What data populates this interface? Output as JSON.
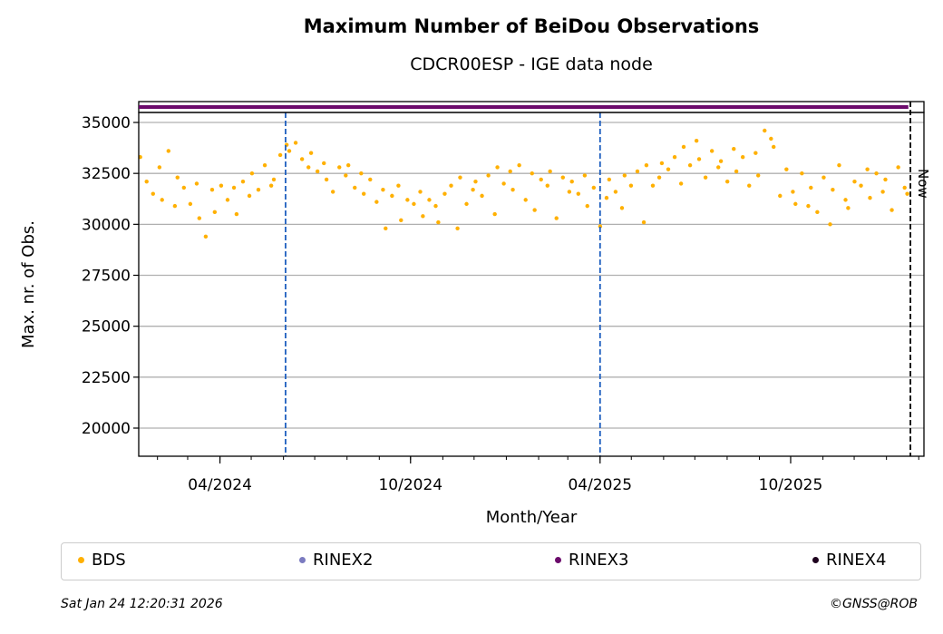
{
  "chart_data": {
    "type": "scatter",
    "title": "Maximum Number of BeiDou Observations",
    "subtitle": "CDCR00ESP - IGE data node",
    "xlabel": "Month/Year",
    "ylabel": "Max. nr. of Obs.",
    "x_range": [
      "2024-01-14",
      "2026-02-06"
    ],
    "ylim": [
      18620,
      35490
    ],
    "yticks": [
      20000,
      22500,
      25000,
      27500,
      30000,
      32500,
      35000
    ],
    "xticks": [
      {
        "date": "2024-04-01",
        "label": "04/2024"
      },
      {
        "date": "2024-10-01",
        "label": "10/2024"
      },
      {
        "date": "2025-04-01",
        "label": "04/2025"
      },
      {
        "date": "2025-10-01",
        "label": "10/2025"
      }
    ],
    "grid": "horizontal",
    "vlines": [
      {
        "date": "2024-06-03",
        "color": "#1f5fbf",
        "style": "dashed"
      },
      {
        "date": "2025-04-01",
        "color": "#1f5fbf",
        "style": "dashed"
      },
      {
        "date": "2026-01-24",
        "color": "#000000",
        "style": "dashed",
        "label": "Now"
      }
    ],
    "series": [
      {
        "name": "BDS",
        "color": "#ffb000",
        "start": "2024-01-17",
        "end": "2026-01-22",
        "values": [
          33300,
          32100,
          31500,
          32800,
          31200,
          33600,
          30900,
          32300,
          31800,
          31000,
          32000,
          30300,
          29400,
          31700,
          30600,
          31900,
          31200,
          31800,
          30500,
          32100,
          31400,
          32500,
          31700,
          32900,
          31900,
          32200,
          33400,
          33900,
          33600,
          34000,
          33200,
          32800,
          33500,
          32600,
          33000,
          32200,
          31600,
          32800,
          32400,
          32900,
          31800,
          32500,
          31500,
          32200,
          31100,
          31700,
          29800,
          31400,
          31900,
          30200,
          31200,
          31000,
          31600,
          30400,
          31200,
          30900,
          30100,
          31500,
          31900,
          29800,
          32300,
          31000,
          31700,
          32100,
          31400,
          32400,
          30500,
          32800,
          32000,
          32600,
          31700,
          32900,
          31200,
          32500,
          30700,
          32200,
          31900,
          32600,
          30300,
          32300,
          31600,
          32100,
          31500,
          32400,
          30900,
          31800,
          29900,
          31300,
          32200,
          31600,
          30800,
          32400,
          31900,
          32600,
          30100,
          32900,
          31900,
          32300,
          33000,
          32700,
          33300,
          32000,
          33800,
          32900,
          34100,
          33200,
          32300,
          33600,
          32800,
          33100,
          32100,
          33700,
          32600,
          33300,
          31900,
          33500,
          32400,
          34600,
          34200,
          33800,
          31400,
          32700,
          31600,
          31000,
          32500,
          30900,
          31800,
          30600,
          32300,
          30000,
          31700,
          32900,
          31200,
          30800,
          32100,
          31900,
          32700,
          31300,
          32500,
          31600,
          32200,
          30700,
          32800,
          31800,
          31500
        ]
      },
      {
        "name": "RINEX2",
        "color": "#7b7bc0",
        "values": []
      },
      {
        "name": "RINEX3",
        "color": "#6b0a6b",
        "start": "2024-01-14",
        "end": "2026-01-22",
        "strip": true
      },
      {
        "name": "RINEX4",
        "color": "#1e001e",
        "values": []
      }
    ]
  },
  "footer": {
    "timestamp": "Sat Jan 24 12:20:31 2026",
    "copyright": "©GNSS@ROB"
  }
}
